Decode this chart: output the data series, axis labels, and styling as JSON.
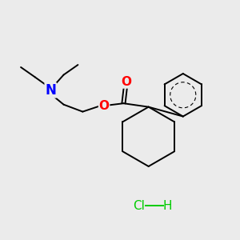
{
  "background_color": "#ebebeb",
  "atom_colors": {
    "N": "#0000ff",
    "O": "#ff0000",
    "C": "#000000",
    "Cl": "#00cc00",
    "H": "#00cc00"
  },
  "bond_lw": 1.4,
  "figsize": [
    3.0,
    3.0
  ],
  "dpi": 100,
  "xlim": [
    0,
    10
  ],
  "ylim": [
    0,
    10
  ]
}
